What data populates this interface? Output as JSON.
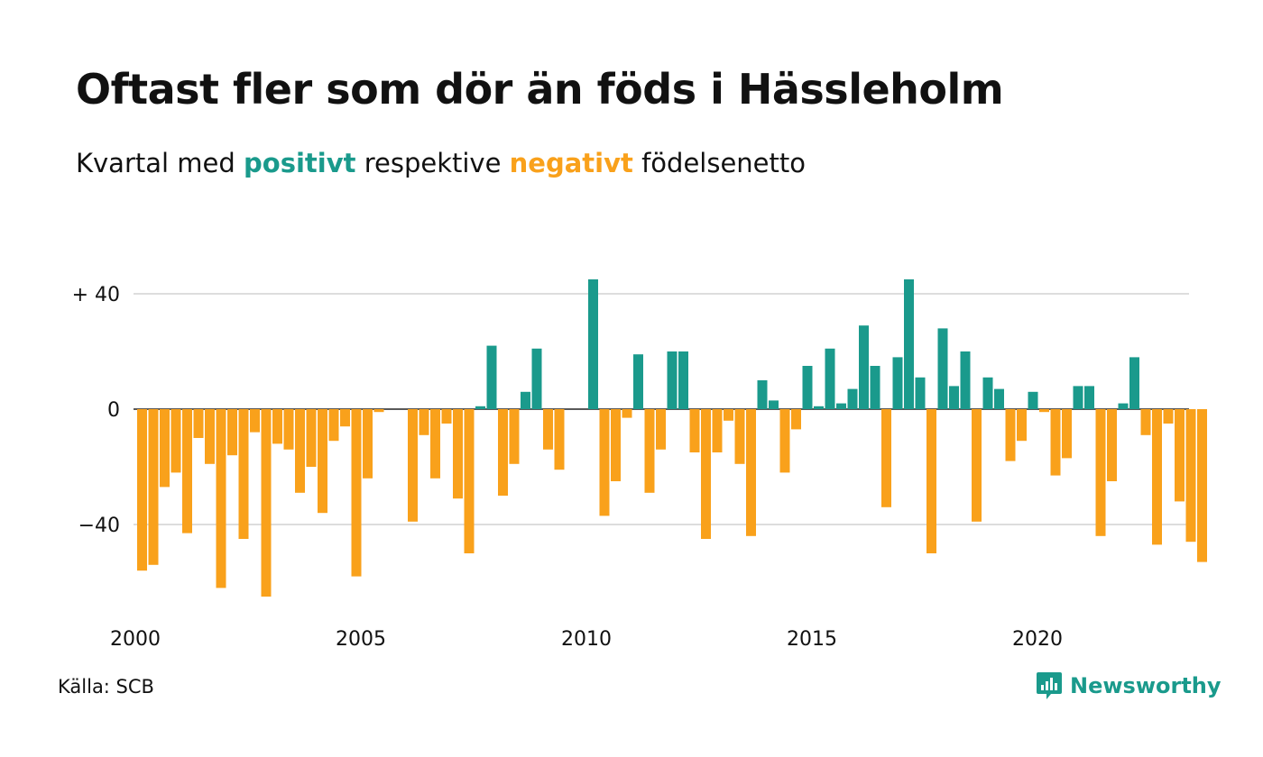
{
  "header": {
    "title": "Oftast fler som dör än föds i Hässleholm",
    "subtitle_prefix": "Kvartal med",
    "subtitle_positive": "positivt",
    "subtitle_middle": "respektive",
    "subtitle_negative": "negativt",
    "subtitle_suffix": "födelsenetto"
  },
  "footer": {
    "source": "Källa: SCB",
    "logo_text": "Newsworthy"
  },
  "colors": {
    "positive": "#1a9a8c",
    "negative": "#f9a11b",
    "grid": "#dddddd",
    "zero_line": "#222222"
  },
  "chart_data": {
    "type": "bar",
    "title": "Oftast fler som dör än föds i Hässleholm",
    "subtitle": "Kvartal med positivt respektive negativt födelsenetto",
    "xlabel": "",
    "ylabel": "",
    "grid": true,
    "ylim": [
      -67,
      46
    ],
    "y_ticks": [
      {
        "value": 40,
        "label": "+ 40"
      },
      {
        "value": 0,
        "label": "0"
      },
      {
        "value": -40,
        "label": "−40"
      }
    ],
    "x_ticks": [
      {
        "value": 2000,
        "label": "2000"
      },
      {
        "value": 2005,
        "label": "2005"
      },
      {
        "value": 2010,
        "label": "2010"
      },
      {
        "value": 2015,
        "label": "2015"
      },
      {
        "value": 2020,
        "label": "2020"
      }
    ],
    "first_quarter_year": 2000,
    "values": [
      -56,
      -54,
      -27,
      -22,
      -43,
      -10,
      -19,
      -62,
      -16,
      -45,
      -8,
      -65,
      -12,
      -14,
      -29,
      -20,
      -36,
      -11,
      -6,
      -58,
      -24,
      -1,
      0,
      0,
      -39,
      -9,
      -24,
      -5,
      -31,
      -50,
      1,
      22,
      -30,
      -19,
      6,
      21,
      -14,
      -21,
      0,
      0,
      45,
      -37,
      -25,
      -3,
      19,
      -29,
      -14,
      20,
      20,
      -15,
      -45,
      -15,
      -4,
      -19,
      -44,
      10,
      3,
      -22,
      -7,
      15,
      1,
      21,
      2,
      7,
      29,
      15,
      -34,
      18,
      45,
      11,
      -50,
      28,
      8,
      20,
      -39,
      11,
      7,
      -18,
      -11,
      6,
      -1,
      -23,
      -17,
      8,
      8,
      -44,
      -25,
      2,
      18,
      -9,
      -47,
      -5,
      -32,
      -46,
      -53
    ]
  }
}
